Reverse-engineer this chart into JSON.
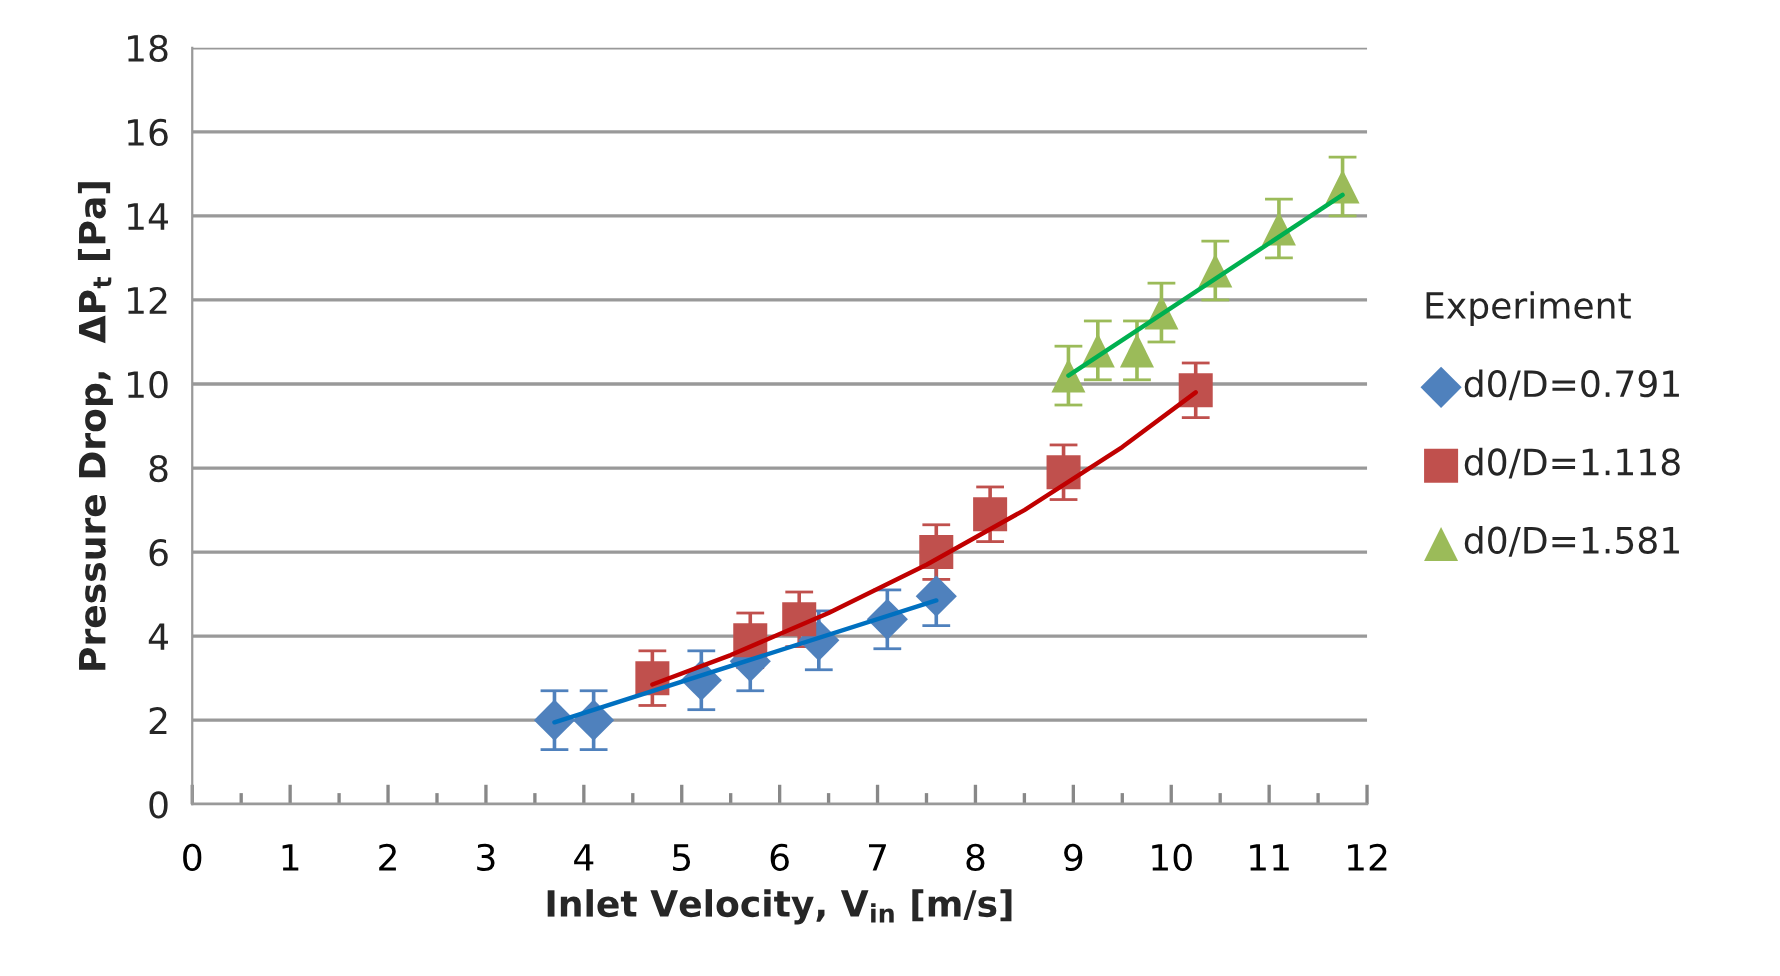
{
  "chart_data": {
    "type": "scatter",
    "xlabel": "Inlet Velocity, V$_{in}$ [m/s]",
    "ylabel": "Pressure Drop,  ΔP$_{t}$ [Pa]",
    "legend_title": "Experiment",
    "legend": "right",
    "grid": "y",
    "xlim": [
      0,
      12
    ],
    "ylim": [
      0,
      18
    ],
    "xticks": [
      0,
      {
        "value": 0.5,
        "label": null
      },
      1,
      {
        "value": 1.5,
        "label": null
      },
      2,
      {
        "value": 2.5,
        "label": null
      },
      3,
      {
        "value": 3.5,
        "label": null
      },
      4,
      {
        "value": 4.5,
        "label": null
      },
      5,
      {
        "value": 5.5,
        "label": null
      },
      6,
      {
        "value": 6.5,
        "label": null
      },
      7,
      {
        "value": 7.5,
        "label": null
      },
      8,
      {
        "value": 8.5,
        "label": null
      },
      9,
      {
        "value": 9.5,
        "label": null
      },
      10,
      {
        "value": 10.5,
        "label": null
      },
      11,
      {
        "value": 11.5,
        "label": null
      },
      12
    ],
    "yticks": [
      0,
      2,
      4,
      6,
      8,
      10,
      12,
      14,
      16,
      18
    ],
    "series": [
      {
        "name": "d0/D=0.791",
        "marker": "diamond",
        "color": "#4f81bd",
        "x": [
          3.7,
          4.1,
          5.2,
          5.7,
          6.4,
          7.1,
          7.6
        ],
        "values": [
          2.0,
          2.0,
          2.95,
          3.4,
          3.9,
          4.4,
          4.95
        ],
        "errors": [
          0.7,
          0.7,
          0.7,
          0.7,
          0.7,
          0.7,
          0.7
        ]
      },
      {
        "name": "d0/D=1.118",
        "marker": "square",
        "color": "#c0504d",
        "x": [
          4.7,
          5.7,
          6.2,
          7.6,
          8.15,
          8.9,
          10.25
        ],
        "values": [
          3.0,
          3.9,
          4.4,
          6.0,
          6.9,
          7.9,
          9.85
        ],
        "errors": [
          0.65,
          0.65,
          0.65,
          0.65,
          0.65,
          0.65,
          0.65
        ]
      },
      {
        "name": "d0/D=1.581",
        "marker": "triangle",
        "color": "#9bbb59",
        "x": [
          8.95,
          9.25,
          9.65,
          9.9,
          10.45,
          11.1,
          11.75
        ],
        "values": [
          10.2,
          10.8,
          10.8,
          11.7,
          12.7,
          13.7,
          14.7
        ],
        "errors": [
          0.7,
          0.7,
          0.7,
          0.7,
          0.7,
          0.7,
          0.7
        ]
      },
      {
        "type": "line",
        "marker": "none",
        "line_style": "solid",
        "color": "#0070c0",
        "x": [
          3.7,
          7.6
        ],
        "values": [
          1.95,
          4.85
        ]
      },
      {
        "type": "line",
        "marker": "none",
        "line_style": "solid",
        "color": "#c00000",
        "x": [
          4.7,
          5.5,
          6.5,
          7.5,
          8.5,
          9.5,
          10.25
        ],
        "values": [
          2.85,
          3.55,
          4.55,
          5.7,
          7.0,
          8.5,
          9.8
        ]
      },
      {
        "type": "line",
        "marker": "none",
        "line_style": "solid",
        "color": "#00b050",
        "x": [
          8.95,
          11.75
        ],
        "values": [
          10.2,
          14.5
        ]
      }
    ]
  }
}
